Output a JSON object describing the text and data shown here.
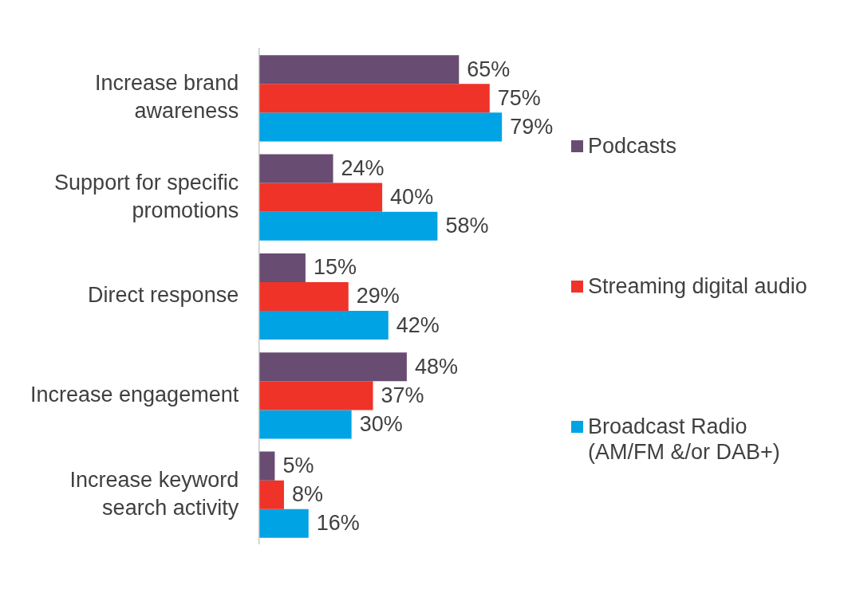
{
  "chart_data": {
    "type": "bar",
    "orientation": "horizontal",
    "grid": false,
    "legend": "right",
    "categories": [
      "Increase brand awareness",
      "Support for specific promotions",
      "Direct response",
      "Increase engagement",
      "Increase keyword search activity"
    ],
    "series": [
      {
        "name": "Podcasts",
        "color": "#684c72",
        "values": [
          65,
          24,
          15,
          48,
          5
        ],
        "value_labels": [
          "65%",
          "24%",
          "15%",
          "48%",
          "5%"
        ]
      },
      {
        "name": "Streaming digital audio",
        "color": "#ef3329",
        "values": [
          75,
          40,
          29,
          37,
          8
        ],
        "value_labels": [
          "75%",
          "40%",
          "29%",
          "37%",
          "8%"
        ]
      },
      {
        "name": "Broadcast Radio (AM/FM &/or DAB+)",
        "color": "#00a3e3",
        "values": [
          79,
          58,
          42,
          30,
          16
        ],
        "value_labels": [
          "79%",
          "58%",
          "42%",
          "30%",
          "16%"
        ]
      }
    ]
  }
}
